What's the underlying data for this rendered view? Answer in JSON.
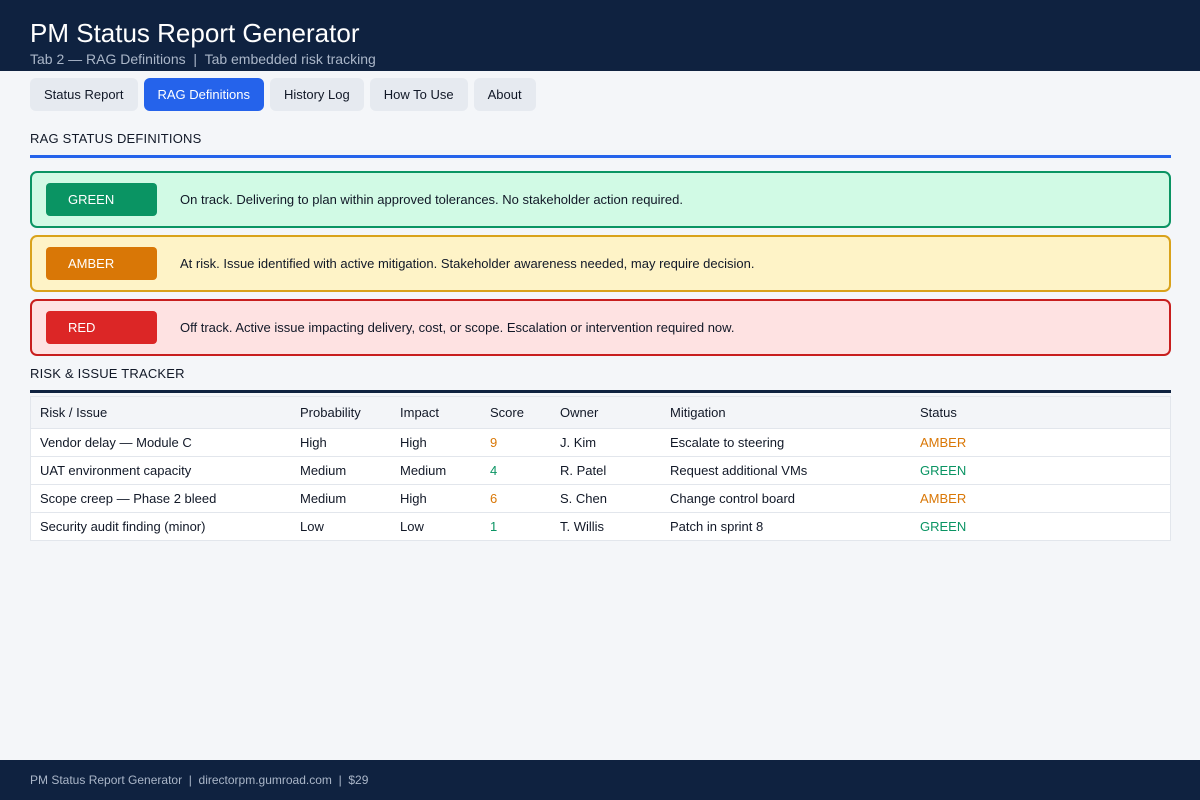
{
  "header": {
    "title": "PM Status Report Generator",
    "subtitle": "Tab 2 — RAG Definitions  |  Tab embedded risk tracking"
  },
  "tabs": [
    {
      "label": "Status Report",
      "active": false
    },
    {
      "label": "RAG Definitions",
      "active": true
    },
    {
      "label": "History Log",
      "active": false
    },
    {
      "label": "How To Use",
      "active": false
    },
    {
      "label": "About",
      "active": false
    }
  ],
  "rag": {
    "section_title": "RAG STATUS DEFINITIONS",
    "accent_color": "#2563eb",
    "items": [
      {
        "label": "GREEN",
        "description": "On track. Delivering to plan within approved tolerances. No stakeholder action required.",
        "badge_color": "#0a9463",
        "border_color": "#0a9463",
        "bg_color": "#d1fae5"
      },
      {
        "label": "AMBER",
        "description": "At risk. Issue identified with active mitigation. Stakeholder awareness needed, may require decision.",
        "badge_color": "#d97706",
        "border_color": "#d9a21b",
        "bg_color": "#fef3c7"
      },
      {
        "label": "RED",
        "description": "Off track. Active issue impacting delivery, cost, or scope. Escalation or intervention required now.",
        "badge_color": "#dc2626",
        "border_color": "#c81e1e",
        "bg_color": "#fee2e2"
      }
    ]
  },
  "tracker": {
    "section_title": "RISK & ISSUE TRACKER",
    "columns": [
      "Risk / Issue",
      "Probability",
      "Impact",
      "Score",
      "Owner",
      "Mitigation",
      "Status"
    ],
    "rows": [
      {
        "risk": "Vendor delay — Module C",
        "probability": "High",
        "impact": "High",
        "score": "9",
        "owner": "J. Kim",
        "mitigation": "Escalate to steering",
        "status": "AMBER"
      },
      {
        "risk": "UAT environment capacity",
        "probability": "Medium",
        "impact": "Medium",
        "score": "4",
        "owner": "R. Patel",
        "mitigation": "Request additional VMs",
        "status": "GREEN"
      },
      {
        "risk": "Scope creep — Phase 2 bleed",
        "probability": "Medium",
        "impact": "High",
        "score": "6",
        "owner": "S. Chen",
        "mitigation": "Change control board",
        "status": "AMBER"
      },
      {
        "risk": "Security audit finding (minor)",
        "probability": "Low",
        "impact": "Low",
        "score": "1",
        "owner": "T. Willis",
        "mitigation": "Patch in sprint 8",
        "status": "GREEN"
      }
    ],
    "status_colors": {
      "GREEN": "#0a9463",
      "AMBER": "#d97706",
      "RED": "#dc2626"
    }
  },
  "footer": {
    "text": "PM Status Report Generator  |  directorpm.gumroad.com  |  $29"
  }
}
